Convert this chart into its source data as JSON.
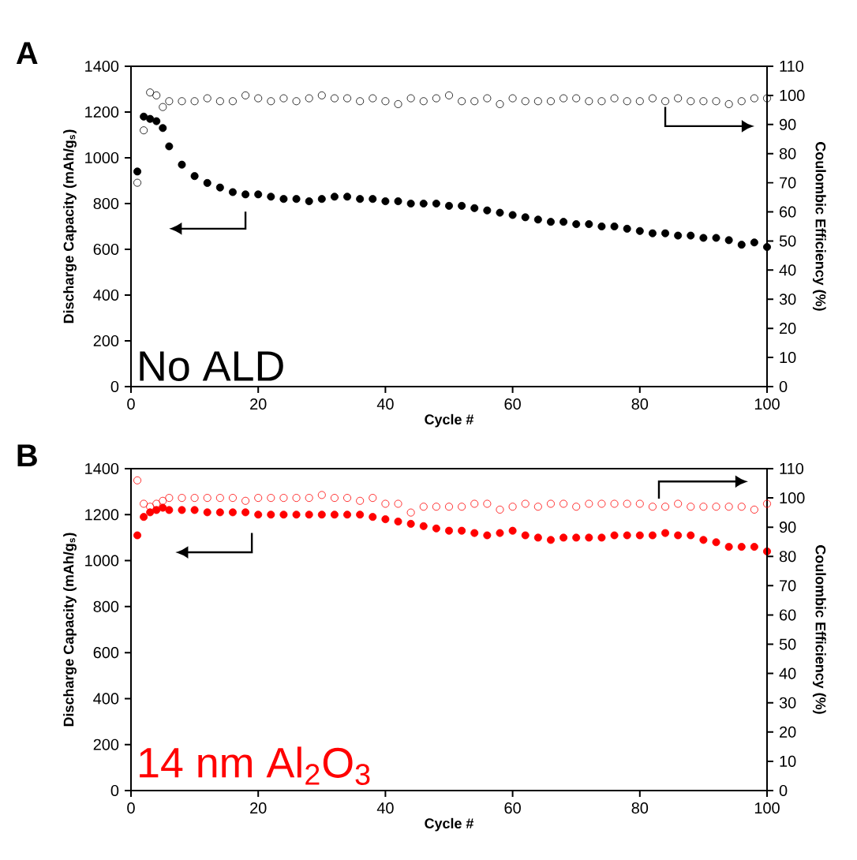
{
  "chart_data": [
    {
      "type": "scatter",
      "xlabel": "Cycle #",
      "ylabel": "Discharge Capacity (mAh/g$_{s}$)",
      "y2label": "Coulombic Efficiency (%)",
      "annotations": [
        "A",
        "No ALD"
      ],
      "xlim": [
        0,
        100
      ],
      "xticks": [
        0,
        20,
        40,
        60,
        80,
        100
      ],
      "ylim": [
        0,
        1400
      ],
      "yticks": [
        0,
        200,
        400,
        600,
        800,
        1000,
        1200,
        1400
      ],
      "y2lim": [
        0,
        110
      ],
      "y2ticks": [
        0,
        10,
        20,
        30,
        40,
        50,
        60,
        70,
        80,
        90,
        100,
        110
      ],
      "marker": "circle",
      "x": [
        1,
        2,
        3,
        4,
        5,
        6,
        8,
        10,
        12,
        14,
        16,
        18,
        20,
        22,
        24,
        26,
        28,
        30,
        32,
        34,
        36,
        38,
        40,
        42,
        44,
        46,
        48,
        50,
        52,
        54,
        56,
        58,
        60,
        62,
        64,
        66,
        68,
        70,
        72,
        74,
        76,
        78,
        80,
        82,
        84,
        86,
        88,
        90,
        92,
        94,
        96,
        98,
        100
      ],
      "series": [
        {
          "color": "#000000",
          "values": [
            940,
            1180,
            1170,
            1160,
            1130,
            1050,
            970,
            920,
            890,
            870,
            850,
            840,
            840,
            830,
            820,
            820,
            810,
            820,
            830,
            830,
            820,
            820,
            810,
            810,
            800,
            800,
            800,
            790,
            790,
            780,
            770,
            760,
            750,
            740,
            730,
            720,
            720,
            710,
            710,
            700,
            700,
            690,
            680,
            670,
            670,
            660,
            660,
            650,
            650,
            640,
            620,
            630,
            610
          ]
        },
        {
          "color": "#000000",
          "axis": "y2",
          "values": [
            70,
            88,
            101,
            100,
            96,
            98,
            98,
            98,
            99,
            98,
            98,
            100,
            99,
            98,
            99,
            98,
            99,
            100,
            99,
            99,
            98,
            99,
            98,
            97,
            99,
            98,
            99,
            100,
            98,
            98,
            99,
            97,
            99,
            98,
            98,
            98,
            99,
            99,
            98,
            98,
            99,
            98,
            98,
            99,
            98,
            99,
            98,
            98,
            98,
            97,
            98,
            99,
            99
          ]
        }
      ]
    },
    {
      "type": "scatter",
      "xlabel": "Cycle #",
      "ylabel": "Discharge Capacity (mAh/g$_{s}$)",
      "y2label": "Coulombic Efficiency (%)",
      "annotations": [
        "B",
        "14 nm Al$_{2}$O$_{3}$"
      ],
      "xlim": [
        0,
        100
      ],
      "xticks": [
        0,
        20,
        40,
        60,
        80,
        100
      ],
      "ylim": [
        0,
        1400
      ],
      "yticks": [
        0,
        200,
        400,
        600,
        800,
        1000,
        1200,
        1400
      ],
      "y2lim": [
        0,
        110
      ],
      "y2ticks": [
        0,
        10,
        20,
        30,
        40,
        50,
        60,
        70,
        80,
        90,
        100,
        110
      ],
      "marker": "circle",
      "x": [
        1,
        2,
        3,
        4,
        5,
        6,
        8,
        10,
        12,
        14,
        16,
        18,
        20,
        22,
        24,
        26,
        28,
        30,
        32,
        34,
        36,
        38,
        40,
        42,
        44,
        46,
        48,
        50,
        52,
        54,
        56,
        58,
        60,
        62,
        64,
        66,
        68,
        70,
        72,
        74,
        76,
        78,
        80,
        82,
        84,
        86,
        88,
        90,
        92,
        94,
        96,
        98,
        100
      ],
      "series": [
        {
          "color": "#ff0000",
          "values": [
            1110,
            1190,
            1210,
            1220,
            1230,
            1220,
            1220,
            1220,
            1210,
            1210,
            1210,
            1210,
            1200,
            1200,
            1200,
            1200,
            1200,
            1200,
            1200,
            1200,
            1200,
            1190,
            1180,
            1170,
            1160,
            1150,
            1140,
            1130,
            1130,
            1120,
            1110,
            1120,
            1130,
            1110,
            1100,
            1090,
            1100,
            1100,
            1100,
            1100,
            1110,
            1110,
            1110,
            1110,
            1120,
            1110,
            1110,
            1090,
            1080,
            1060,
            1060,
            1060,
            1040
          ]
        },
        {
          "color": "#ff0000",
          "axis": "y2",
          "values": [
            106,
            98,
            97,
            98,
            99,
            100,
            100,
            100,
            100,
            100,
            100,
            99,
            100,
            100,
            100,
            100,
            100,
            101,
            100,
            100,
            99,
            100,
            98,
            98,
            95,
            97,
            97,
            97,
            97,
            98,
            98,
            96,
            97,
            98,
            97,
            98,
            98,
            97,
            98,
            98,
            98,
            98,
            98,
            97,
            97,
            98,
            97,
            97,
            97,
            97,
            97,
            96,
            98
          ]
        }
      ]
    }
  ]
}
